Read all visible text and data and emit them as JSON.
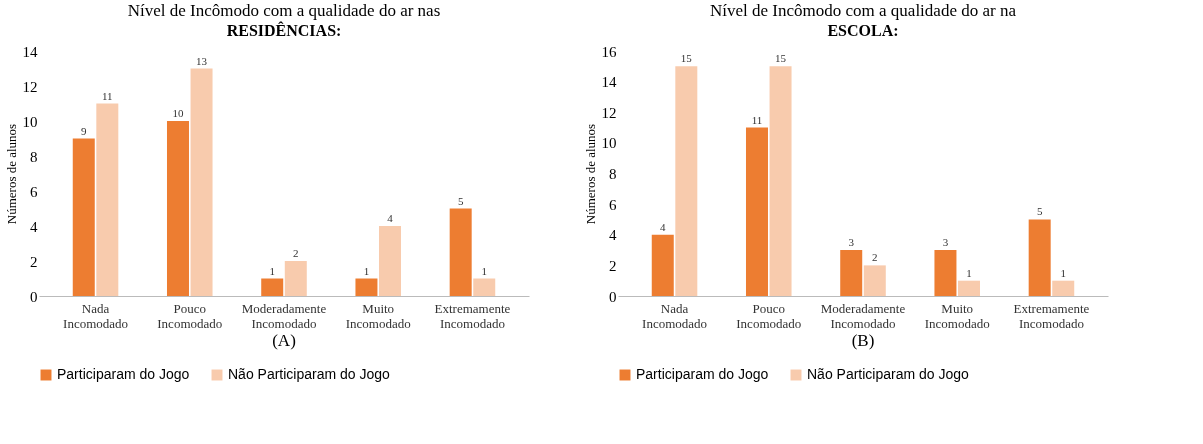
{
  "chart_data": [
    {
      "type": "bar",
      "title": "Nível de Incômodo com a qualidade do ar nas",
      "subtitle": "RESIDÊNCIAS:",
      "ylabel": "Números de alunos",
      "categories": [
        "Nada Incomodado",
        "Pouco Incomodado",
        "Moderadamente Incomodado",
        "Muito Incomodado",
        "Extremamente Incomodado"
      ],
      "series": [
        {
          "name": "Participaram do Jogo",
          "color": "#ed7d31",
          "values": [
            9,
            10,
            1,
            1,
            5
          ]
        },
        {
          "name": "Não Participaram do Jogo",
          "color": "#f8cbad",
          "values": [
            11,
            13,
            2,
            4,
            1
          ]
        }
      ],
      "ylim": [
        0,
        14
      ],
      "yticks": [
        0,
        2,
        4,
        6,
        8,
        10,
        12,
        14
      ],
      "grid": false,
      "legend": "bottom",
      "data_labels": true,
      "annotations": [
        "(A)"
      ]
    },
    {
      "type": "bar",
      "title": "Nível de Incômodo com a qualidade do ar na",
      "subtitle": "ESCOLA:",
      "ylabel": "Números de alunos",
      "categories": [
        "Nada Incomodado",
        "Pouco Incomodado",
        "Moderadamente Incomodado",
        "Muito Incomodado",
        "Extremamente Incomodado"
      ],
      "series": [
        {
          "name": "Participaram do Jogo",
          "color": "#ed7d31",
          "values": [
            4,
            11,
            3,
            3,
            5
          ]
        },
        {
          "name": "Não Participaram do Jogo",
          "color": "#f8cbad",
          "values": [
            15,
            15,
            2,
            1,
            1
          ]
        }
      ],
      "ylim": [
        0,
        16
      ],
      "yticks": [
        0,
        2,
        4,
        6,
        8,
        10,
        12,
        14,
        16
      ],
      "grid": false,
      "legend": "bottom",
      "data_labels": true,
      "annotations": [
        "(B)"
      ]
    }
  ]
}
